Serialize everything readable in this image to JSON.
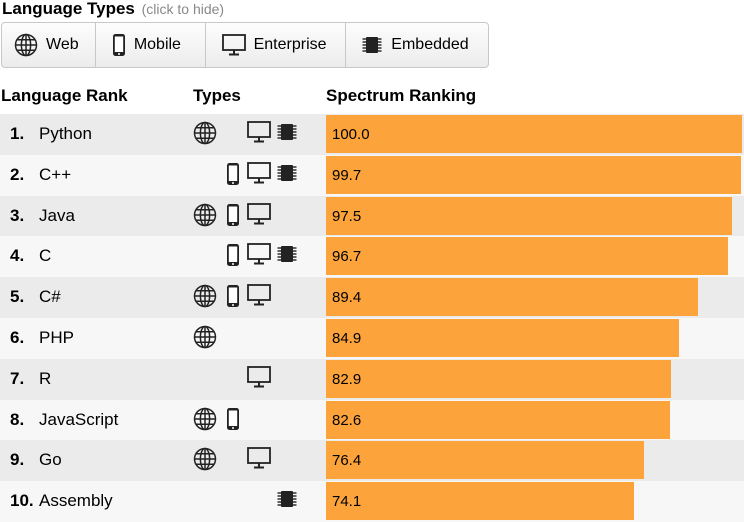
{
  "legend": {
    "title": "Language Types",
    "hint": "(click to hide)",
    "items": [
      {
        "key": "web",
        "label": "Web",
        "icon": "globe-icon"
      },
      {
        "key": "mobile",
        "label": "Mobile",
        "icon": "mobile-phone-icon"
      },
      {
        "key": "enterprise",
        "label": "Enterprise",
        "icon": "desktop-monitor-icon"
      },
      {
        "key": "embedded",
        "label": "Embedded",
        "icon": "chip-icon"
      }
    ]
  },
  "headers": {
    "rank": "Language Rank",
    "types": "Types",
    "spectrum": "Spectrum Ranking"
  },
  "colors": {
    "bar": "#fca43b",
    "row_odd": "#ebebeb",
    "row_even": "#f7f7f7"
  },
  "chart_data": {
    "type": "bar",
    "orientation": "horizontal",
    "xlim": [
      0,
      100
    ],
    "categories": [
      "Python",
      "C++",
      "Java",
      "C",
      "C#",
      "PHP",
      "R",
      "JavaScript",
      "Go",
      "Assembly"
    ],
    "values": [
      100.0,
      99.7,
      97.5,
      96.7,
      89.4,
      84.9,
      82.9,
      82.6,
      76.4,
      74.1
    ],
    "value_labels": [
      "100.0",
      "99.7",
      "97.5",
      "96.7",
      "89.4",
      "84.9",
      "82.9",
      "82.6",
      "76.4",
      "74.1"
    ],
    "rank_labels": [
      "1.",
      "2.",
      "3.",
      "4.",
      "5.",
      "6.",
      "7.",
      "8.",
      "9.",
      "10."
    ],
    "types": [
      [
        "web",
        "enterprise",
        "embedded"
      ],
      [
        "mobile",
        "enterprise",
        "embedded"
      ],
      [
        "web",
        "mobile",
        "enterprise"
      ],
      [
        "mobile",
        "enterprise",
        "embedded"
      ],
      [
        "web",
        "mobile",
        "enterprise"
      ],
      [
        "web"
      ],
      [
        "enterprise"
      ],
      [
        "web",
        "mobile"
      ],
      [
        "web",
        "enterprise"
      ],
      [
        "embedded"
      ]
    ]
  }
}
